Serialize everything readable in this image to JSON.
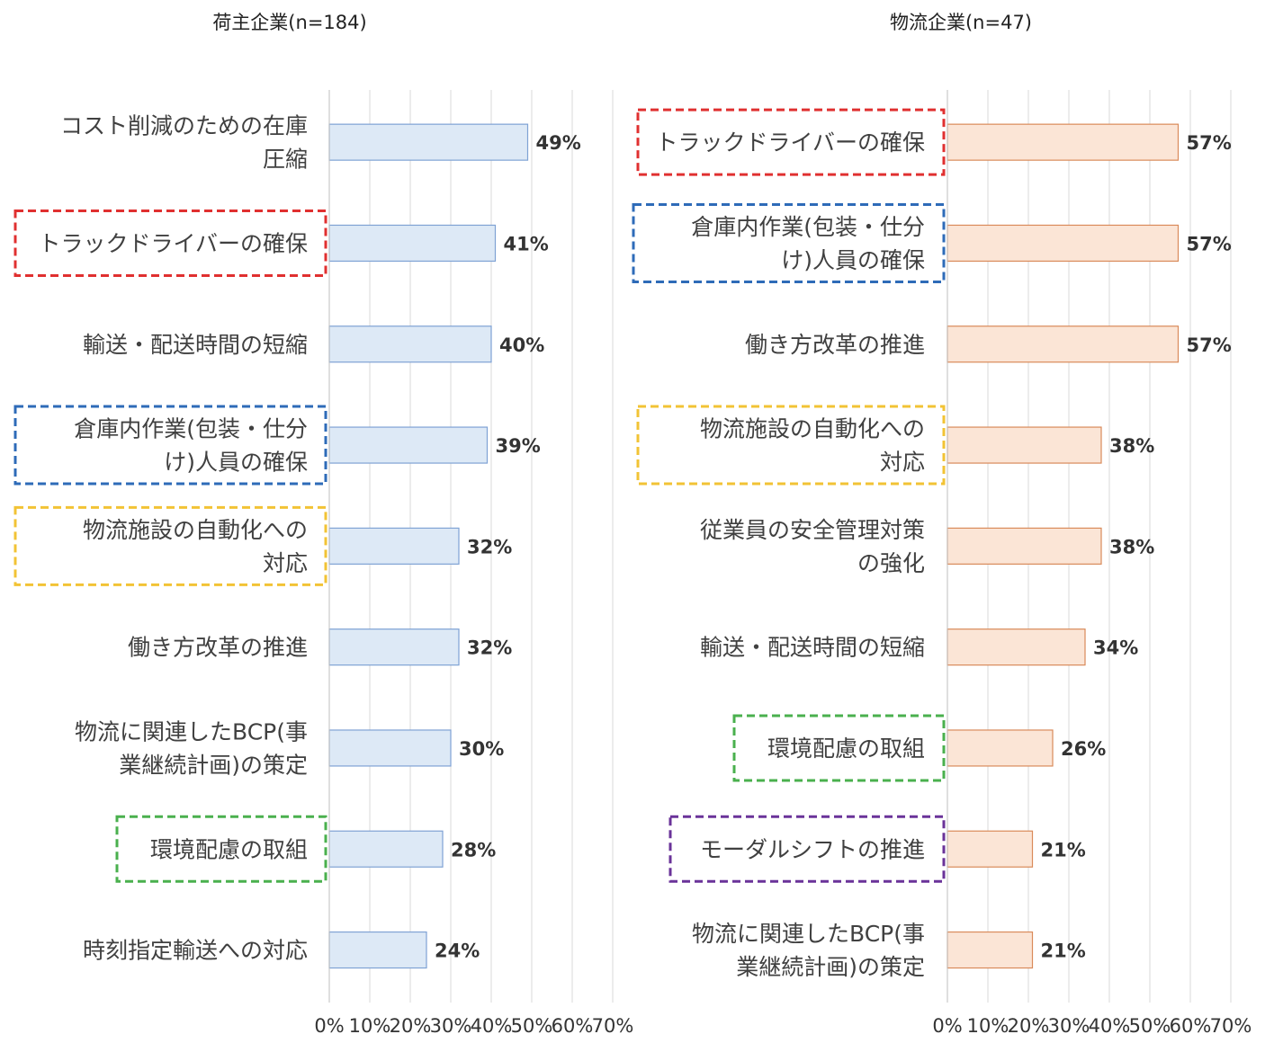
{
  "chart_data": [
    {
      "type": "bar",
      "orientation": "horizontal",
      "title": "荷主企業(n=184)",
      "categories": [
        "コスト削減のための在庫圧縮",
        "トラックドライバーの確保",
        "輸送・配送時間の短縮",
        "倉庫内作業(包装・仕分け)人員の確保",
        "物流施設の自動化への対応",
        "働き方改革の推進",
        "物流に関連したBCP(事業継続計画)の策定",
        "環境配慮の取組",
        "時刻指定輸送への対応"
      ],
      "category_lines": [
        [
          "コスト削減のための在庫",
          "圧縮"
        ],
        [
          "トラックドライバーの確保"
        ],
        [
          "輸送・配送時間の短縮"
        ],
        [
          "倉庫内作業(包装・仕分",
          "け)人員の確保"
        ],
        [
          "物流施設の自動化への",
          "対応"
        ],
        [
          "働き方改革の推進"
        ],
        [
          "物流に関連したBCP(事",
          "業継続計画)の策定"
        ],
        [
          "環境配慮の取組"
        ],
        [
          "時刻指定輸送への対応"
        ]
      ],
      "values": [
        49,
        41,
        40,
        39,
        32,
        32,
        30,
        28,
        24
      ],
      "value_labels": [
        "49%",
        "41%",
        "40%",
        "39%",
        "32%",
        "32%",
        "30%",
        "28%",
        "24%"
      ],
      "highlight": [
        null,
        "#e03030",
        null,
        "#2e6bb8",
        "#f2c335",
        null,
        null,
        "#4ab04e",
        null
      ],
      "xlim": [
        0,
        70
      ],
      "ticks": [
        "0%",
        "10%",
        "20%",
        "30%",
        "40%",
        "50%",
        "60%",
        "70%"
      ],
      "bar_fill": "#dde9f6",
      "bar_stroke": "#7fa2d4",
      "grid": true
    },
    {
      "type": "bar",
      "orientation": "horizontal",
      "title": "物流企業(n=47)",
      "categories": [
        "トラックドライバーの確保",
        "倉庫内作業(包装・仕分け)人員の確保",
        "働き方改革の推進",
        "物流施設の自動化への対応",
        "従業員の安全管理対策の強化",
        "輸送・配送時間の短縮",
        "環境配慮の取組",
        "モーダルシフトの推進",
        "物流に関連したBCP(事業継続計画)の策定"
      ],
      "category_lines": [
        [
          "トラックドライバーの確保"
        ],
        [
          "倉庫内作業(包装・仕分",
          "け)人員の確保"
        ],
        [
          "働き方改革の推進"
        ],
        [
          "物流施設の自動化への",
          "対応"
        ],
        [
          "従業員の安全管理対策",
          "の強化"
        ],
        [
          "輸送・配送時間の短縮"
        ],
        [
          "環境配慮の取組"
        ],
        [
          "モーダルシフトの推進"
        ],
        [
          "物流に関連したBCP(事",
          "業継続計画)の策定"
        ]
      ],
      "values": [
        57,
        57,
        57,
        38,
        38,
        34,
        26,
        21,
        21
      ],
      "value_labels": [
        "57%",
        "57%",
        "57%",
        "38%",
        "38%",
        "34%",
        "26%",
        "21%",
        "21%"
      ],
      "highlight": [
        "#e03030",
        "#2e6bb8",
        null,
        "#f2c335",
        null,
        null,
        "#4ab04e",
        "#6a3399",
        null
      ],
      "xlim": [
        0,
        70
      ],
      "ticks": [
        "0%",
        "10%",
        "20%",
        "30%",
        "40%",
        "50%",
        "60%",
        "70%"
      ],
      "bar_fill": "#fbe5d6",
      "bar_stroke": "#d98a5a",
      "grid": true
    }
  ]
}
